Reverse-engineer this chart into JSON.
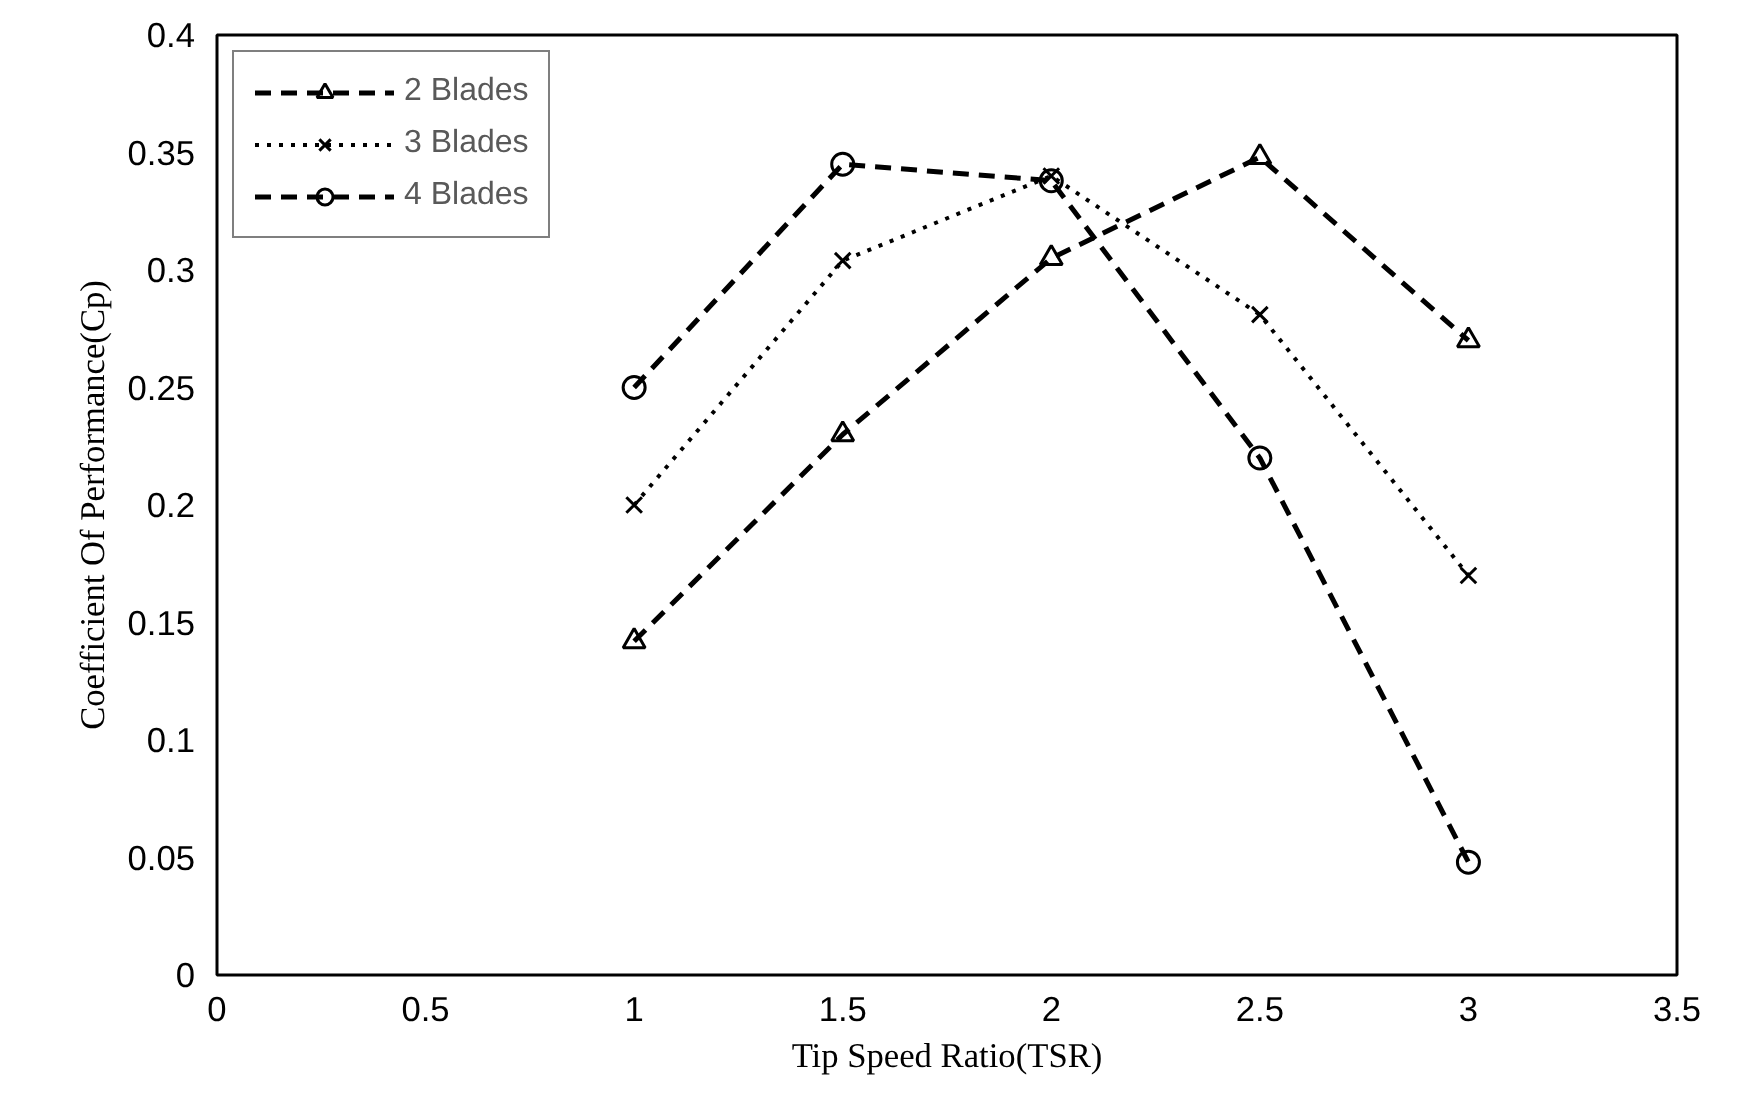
{
  "chart_data": {
    "type": "line",
    "xlabel": "Tip Speed Ratio(TSR)",
    "ylabel": "Coefficient Of Performance(Cp)",
    "x": [
      1,
      1.5,
      2,
      2.5,
      3
    ],
    "series": [
      {
        "name": "2 Blades",
        "color": "#000000",
        "marker": "triangle",
        "line_style": "dashed",
        "values": [
          0.142,
          0.23,
          0.305,
          0.348,
          0.27
        ]
      },
      {
        "name": "3 Blades",
        "color": "#000000",
        "marker": "cross",
        "line_style": "dotted",
        "values": [
          0.2,
          0.304,
          0.34,
          0.281,
          0.17
        ]
      },
      {
        "name": "4 Blades",
        "color": "#000000",
        "marker": "circle",
        "line_style": "dashed",
        "values": [
          0.25,
          0.345,
          0.338,
          0.22,
          0.048
        ]
      }
    ],
    "xlim": [
      0,
      3.5
    ],
    "xticks": [
      0,
      0.5,
      1,
      1.5,
      2,
      2.5,
      3,
      3.5
    ],
    "ylim": [
      0,
      0.4
    ],
    "yticks": [
      0,
      0.05,
      0.1,
      0.15,
      0.2,
      0.25,
      0.3,
      0.35,
      0.4
    ],
    "grid": false,
    "legend": "top left"
  }
}
